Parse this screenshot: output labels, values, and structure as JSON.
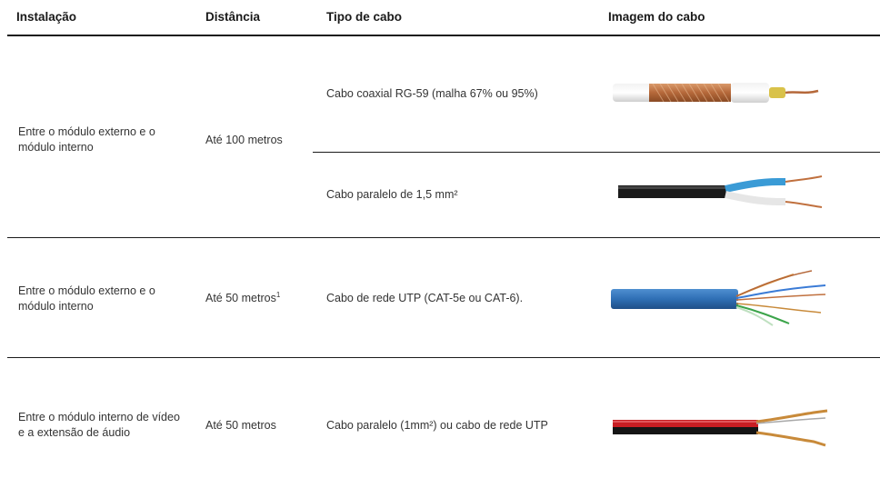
{
  "header": {
    "instalacao": "Instalação",
    "distancia": "Distância",
    "tipo": "Tipo de cabo",
    "imagem": "Imagem do cabo"
  },
  "rows": [
    {
      "instalacao": "Entre o módulo externo e o módulo interno",
      "distancia": "Até 100 metros",
      "cabos": [
        {
          "tipo": "Cabo coaxial RG-59 (malha 67% ou 95%)",
          "imagem": "coaxial-cable-image"
        },
        {
          "tipo": "Cabo paralelo de 1,5 mm²",
          "imagem": "parallel-cable-image"
        }
      ]
    },
    {
      "instalacao": "Entre o módulo externo e o módulo interno",
      "distancia": "Até 50 metros",
      "distancia_nota": "1",
      "cabos": [
        {
          "tipo": "Cabo de rede UTP (CAT-5e ou CAT-6).",
          "imagem": "utp-cable-image"
        }
      ]
    },
    {
      "instalacao": "Entre o módulo interno de vídeo e a extensão de áudio",
      "distancia": "Até 50 metros",
      "cabos": [
        {
          "tipo": "Cabo paralelo (1mm²) ou cabo de rede UTP",
          "imagem": "red-black-cable-image"
        }
      ]
    }
  ]
}
